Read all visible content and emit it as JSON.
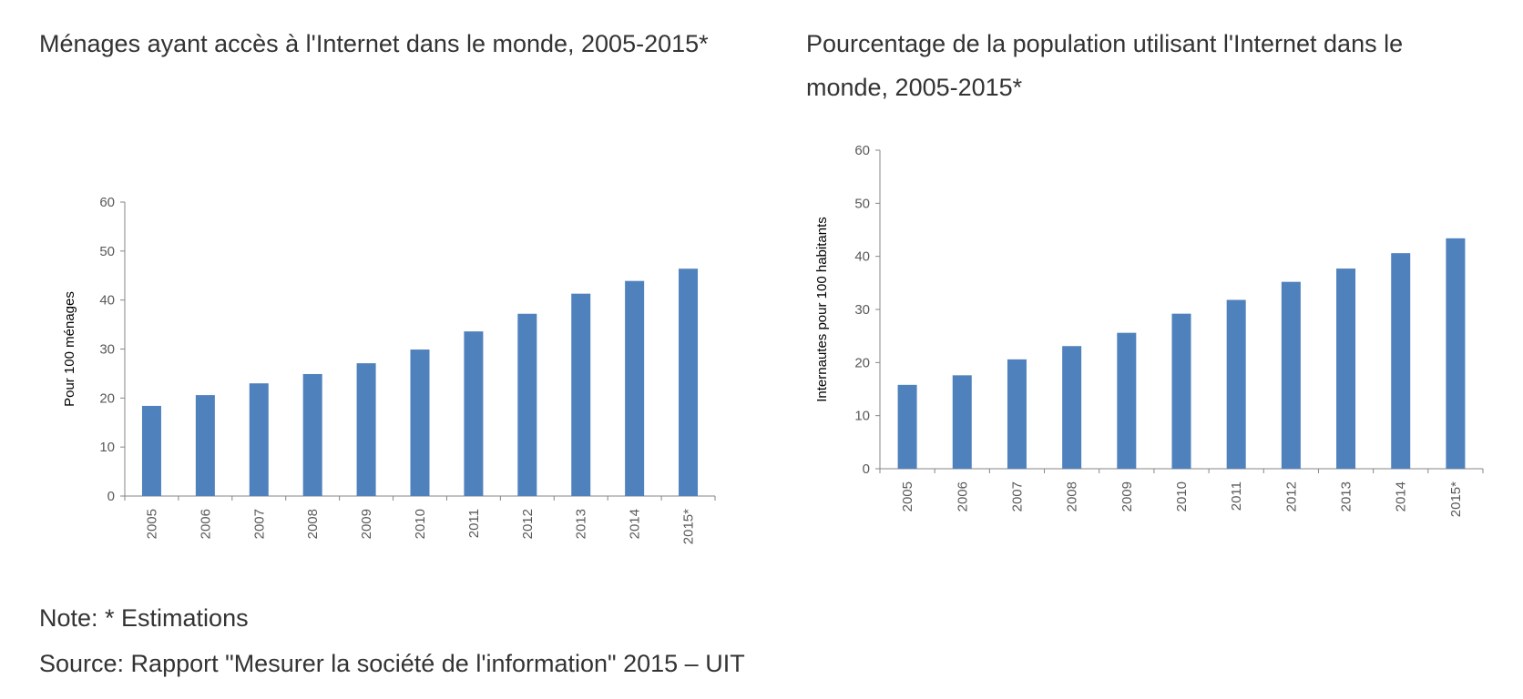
{
  "chart_data": [
    {
      "type": "bar",
      "title": "Ménages ayant accès à l'Internet dans le monde, 2005-2015*",
      "ylabel": "Pour 100 ménages",
      "xlabel": "",
      "categories": [
        "2005",
        "2006",
        "2007",
        "2008",
        "2009",
        "2010",
        "2011",
        "2012",
        "2013",
        "2014",
        "2015*"
      ],
      "values": [
        18.4,
        20.6,
        23.0,
        24.9,
        27.1,
        29.9,
        33.6,
        37.2,
        41.3,
        43.9,
        46.4
      ],
      "ylim": [
        0,
        60
      ],
      "yticks": [
        0,
        10,
        20,
        30,
        40,
        50,
        60
      ],
      "color": "#4f81bd",
      "grid": false,
      "legend": "none"
    },
    {
      "type": "bar",
      "title": "Pourcentage de la population utilisant l'Internet dans le monde, 2005-2015*",
      "ylabel": "Internautes pour 100 habitants",
      "xlabel": "",
      "categories": [
        "2005",
        "2006",
        "2007",
        "2008",
        "2009",
        "2010",
        "2011",
        "2012",
        "2013",
        "2014",
        "2015*"
      ],
      "values": [
        15.8,
        17.6,
        20.6,
        23.1,
        25.6,
        29.2,
        31.8,
        35.2,
        37.7,
        40.6,
        43.4
      ],
      "ylim": [
        0,
        60
      ],
      "yticks": [
        0,
        10,
        20,
        30,
        40,
        50,
        60
      ],
      "color": "#4f81bd",
      "grid": false,
      "legend": "none"
    }
  ],
  "footer": {
    "note": "Note: * Estimations",
    "source": "Source: Rapport \"Mesurer la société de l'information\" 2015 – UIT"
  }
}
